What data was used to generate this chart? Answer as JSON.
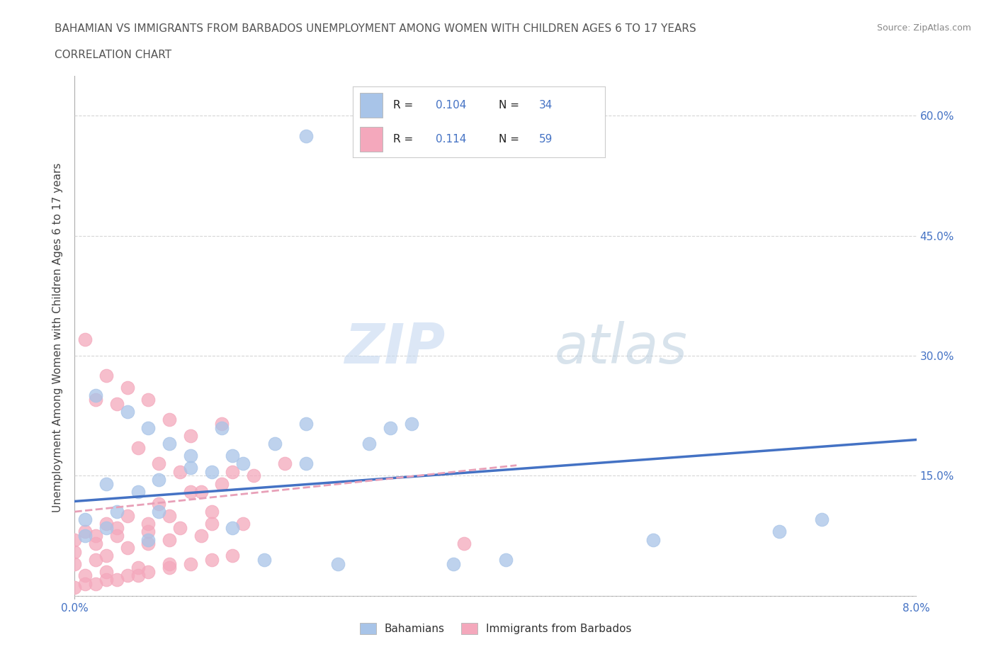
{
  "title_line1": "BAHAMIAN VS IMMIGRANTS FROM BARBADOS UNEMPLOYMENT AMONG WOMEN WITH CHILDREN AGES 6 TO 17 YEARS",
  "title_line2": "CORRELATION CHART",
  "source_text": "Source: ZipAtlas.com",
  "ylabel": "Unemployment Among Women with Children Ages 6 to 17 years",
  "xlim": [
    0.0,
    0.08
  ],
  "ylim": [
    -0.005,
    0.65
  ],
  "xtick_vals": [
    0.0,
    0.02,
    0.04,
    0.06,
    0.08
  ],
  "ytick_vals": [
    0.0,
    0.15,
    0.3,
    0.45,
    0.6
  ],
  "ytick_labels": [
    "",
    "15.0%",
    "30.0%",
    "45.0%",
    "60.0%"
  ],
  "color_blue": "#a8c4e8",
  "color_pink": "#f4a8bc",
  "color_blue_text": "#4472C4",
  "trendline_blue_color": "#4472C4",
  "trendline_pink_color": "#e8a0b8",
  "grid_color": "#cccccc",
  "bahamians_label": "Bahamians",
  "barbados_label": "Immigrants from Barbados",
  "blue_scatter_x": [
    0.022,
    0.002,
    0.005,
    0.007,
    0.009,
    0.011,
    0.014,
    0.003,
    0.006,
    0.001,
    0.004,
    0.008,
    0.011,
    0.015,
    0.019,
    0.013,
    0.016,
    0.022,
    0.03,
    0.001,
    0.003,
    0.007,
    0.022,
    0.028,
    0.032,
    0.071,
    0.008,
    0.015,
    0.018,
    0.036,
    0.041,
    0.055,
    0.067,
    0.025
  ],
  "blue_scatter_y": [
    0.575,
    0.25,
    0.23,
    0.21,
    0.19,
    0.175,
    0.21,
    0.14,
    0.13,
    0.095,
    0.105,
    0.145,
    0.16,
    0.175,
    0.19,
    0.155,
    0.165,
    0.215,
    0.21,
    0.075,
    0.085,
    0.07,
    0.165,
    0.19,
    0.215,
    0.095,
    0.105,
    0.085,
    0.045,
    0.04,
    0.045,
    0.07,
    0.08,
    0.04
  ],
  "pink_scatter_x": [
    0.001,
    0.003,
    0.005,
    0.007,
    0.009,
    0.011,
    0.014,
    0.002,
    0.004,
    0.006,
    0.008,
    0.01,
    0.012,
    0.015,
    0.001,
    0.003,
    0.005,
    0.008,
    0.011,
    0.014,
    0.017,
    0.02,
    0.0,
    0.002,
    0.004,
    0.007,
    0.009,
    0.013,
    0.016,
    0.0,
    0.002,
    0.004,
    0.007,
    0.01,
    0.013,
    0.0,
    0.002,
    0.003,
    0.005,
    0.007,
    0.009,
    0.012,
    0.001,
    0.003,
    0.006,
    0.009,
    0.0,
    0.001,
    0.003,
    0.005,
    0.007,
    0.009,
    0.011,
    0.013,
    0.015,
    0.002,
    0.004,
    0.006,
    0.037
  ],
  "pink_scatter_y": [
    0.32,
    0.275,
    0.26,
    0.245,
    0.22,
    0.2,
    0.215,
    0.245,
    0.24,
    0.185,
    0.165,
    0.155,
    0.13,
    0.155,
    0.08,
    0.09,
    0.1,
    0.115,
    0.13,
    0.14,
    0.15,
    0.165,
    0.07,
    0.075,
    0.085,
    0.09,
    0.1,
    0.105,
    0.09,
    0.055,
    0.065,
    0.075,
    0.08,
    0.085,
    0.09,
    0.04,
    0.045,
    0.05,
    0.06,
    0.065,
    0.07,
    0.075,
    0.025,
    0.03,
    0.035,
    0.04,
    0.01,
    0.015,
    0.02,
    0.025,
    0.03,
    0.035,
    0.04,
    0.045,
    0.05,
    0.015,
    0.02,
    0.025,
    0.065
  ],
  "blue_trend_x": [
    0.0,
    0.08
  ],
  "blue_trend_y": [
    0.118,
    0.195
  ],
  "pink_trend_x": [
    0.0,
    0.042
  ],
  "pink_trend_y": [
    0.105,
    0.163
  ],
  "background_color": "#ffffff"
}
